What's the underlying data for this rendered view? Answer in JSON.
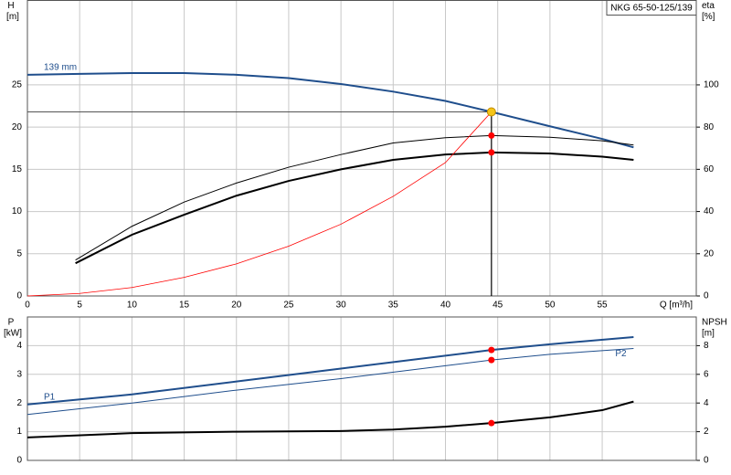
{
  "chart_data": [
    {
      "type": "line",
      "title": "NKG 65-50-125/139",
      "xlabel": "Q [m³/h]",
      "ylabel": "H",
      "yunit": "[m]",
      "y2label": "eta",
      "y2unit": "[%]",
      "xlim": [
        0,
        64
      ],
      "xticks": [
        0,
        5,
        10,
        15,
        20,
        25,
        30,
        35,
        40,
        45,
        50,
        55
      ],
      "ylim": [
        0,
        35
      ],
      "yticks": [
        0,
        5,
        10,
        15,
        20,
        25
      ],
      "y2lim": [
        0,
        140
      ],
      "y2ticks": [
        0,
        20,
        40,
        60,
        80,
        100
      ],
      "grid": true,
      "series": [
        {
          "name": "139 mm",
          "color": "#1f4e8c",
          "width": 2,
          "x": [
            0,
            5,
            10,
            15,
            20,
            25,
            30,
            35,
            40,
            44.4,
            50,
            55,
            58
          ],
          "values": [
            26.2,
            26.3,
            26.4,
            26.4,
            26.2,
            25.8,
            25.1,
            24.2,
            23.1,
            21.8,
            20.1,
            18.6,
            17.6
          ]
        },
        {
          "color": "#000000",
          "width": 1,
          "axis": "y2",
          "x": [
            4.6,
            10,
            15,
            20,
            25,
            30,
            35,
            40,
            44.4,
            50,
            55,
            58
          ],
          "values": [
            17,
            33,
            44.5,
            53.5,
            61,
            67,
            72.5,
            75,
            76,
            75.2,
            73.5,
            71.5
          ]
        },
        {
          "color": "#000000",
          "width": 2,
          "axis": "y2",
          "x": [
            4.6,
            10,
            15,
            20,
            25,
            30,
            35,
            40,
            44.4,
            50,
            55,
            58
          ],
          "values": [
            15.5,
            29,
            38.5,
            47.5,
            54.5,
            60,
            64.5,
            67,
            68,
            67.5,
            66,
            64.5
          ]
        },
        {
          "color": "#ff0000",
          "width": 0.8,
          "x": [
            0,
            5,
            10,
            15,
            20,
            25,
            30,
            35,
            40,
            44.4
          ],
          "values": [
            0,
            0.3,
            1,
            2.2,
            3.8,
            5.9,
            8.5,
            11.8,
            15.8,
            21.8
          ]
        }
      ],
      "operating_point": {
        "x": 44.4,
        "y": 21.8,
        "color": "#f5c518"
      },
      "points": [
        {
          "x": 44.4,
          "y": 76,
          "axis": "y2",
          "color": "#ff0000"
        },
        {
          "x": 44.4,
          "y": 68,
          "axis": "y2",
          "color": "#ff0000"
        }
      ]
    },
    {
      "type": "line",
      "ylabel": "P",
      "yunit": "[kW]",
      "y2label": "NPSH",
      "y2unit": "[m]",
      "xlim": [
        0,
        64
      ],
      "ylim": [
        0,
        5
      ],
      "yticks": [
        0,
        1,
        2,
        3,
        4
      ],
      "y2lim": [
        0,
        10
      ],
      "y2ticks": [
        0,
        2,
        4,
        6,
        8
      ],
      "grid": true,
      "series": [
        {
          "name": "P1",
          "color": "#1f4e8c",
          "width": 2,
          "x": [
            0,
            10,
            20,
            30,
            40,
            44.4,
            50,
            58
          ],
          "values": [
            1.95,
            2.3,
            2.75,
            3.2,
            3.65,
            3.85,
            4.05,
            4.3
          ]
        },
        {
          "name": "P2",
          "color": "#1f4e8c",
          "width": 1,
          "x": [
            0,
            10,
            20,
            30,
            40,
            44.4,
            50,
            58
          ],
          "values": [
            1.6,
            2.0,
            2.45,
            2.85,
            3.3,
            3.5,
            3.7,
            3.9
          ]
        },
        {
          "color": "#000000",
          "width": 2,
          "axis": "y2",
          "x": [
            0,
            10,
            20,
            30,
            35,
            40,
            44.4,
            50,
            55,
            58
          ],
          "values": [
            1.6,
            1.9,
            2.0,
            2.05,
            2.15,
            2.35,
            2.6,
            3.0,
            3.5,
            4.1
          ]
        }
      ],
      "points": [
        {
          "x": 44.4,
          "y": 3.85,
          "color": "#ff0000"
        },
        {
          "x": 44.4,
          "y": 3.5,
          "color": "#ff0000"
        },
        {
          "x": 44.4,
          "y": 2.6,
          "axis": "y2",
          "color": "#ff0000"
        }
      ]
    }
  ]
}
